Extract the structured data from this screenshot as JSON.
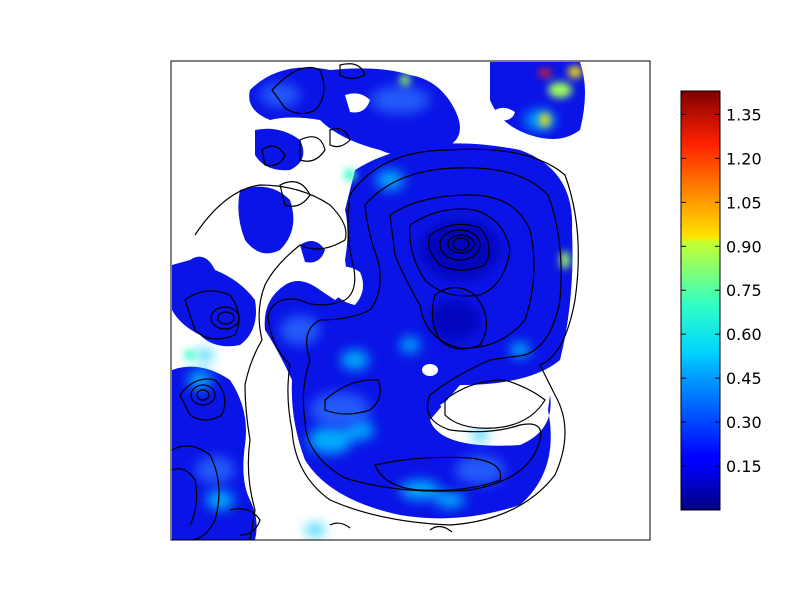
{
  "chart_data": {
    "type": "heatmap",
    "title": "",
    "xlabel": "",
    "ylabel": "",
    "colormap": "jet",
    "colorbar": {
      "min": 0.0,
      "max": 1.43,
      "ticks": [
        0.15,
        0.3,
        0.45,
        0.6,
        0.75,
        0.9,
        1.05,
        1.2,
        1.35
      ],
      "tick_labels": [
        "0.15",
        "0.30",
        "0.45",
        "0.60",
        "0.75",
        "0.90",
        "1.05",
        "1.20",
        "1.35"
      ]
    },
    "map_description_values": {
      "dominant_value": 0.15,
      "secondary_value": 0.4,
      "max_spot_value": 1.3
    },
    "grid": false,
    "axis_ticks_shown": false,
    "contours": "black contour lines overlaid"
  },
  "colors": {
    "background": "#ffffff",
    "axes_frame": "#000000",
    "contour": "#000000"
  }
}
